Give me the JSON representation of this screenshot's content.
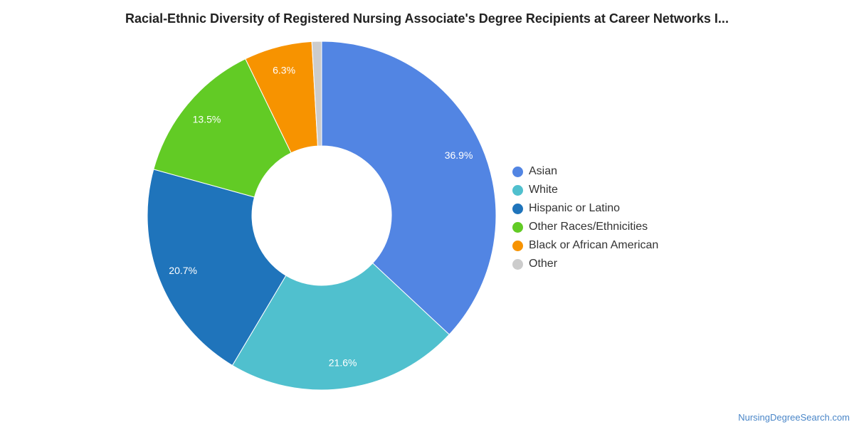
{
  "chart_data": {
    "type": "pie",
    "title": "Racial-Ethnic Diversity of Registered Nursing Associate's Degree Recipients at Career Networks I...",
    "donut": true,
    "legend_position": "right",
    "categories": [
      "Asian",
      "White",
      "Hispanic or Latino",
      "Other Races/Ethnicities",
      "Black or African American",
      "Other"
    ],
    "values": [
      36.9,
      21.6,
      20.7,
      13.5,
      6.3,
      0.9
    ],
    "data_labels": [
      "36.9%",
      "21.6%",
      "20.7%",
      "13.5%",
      "6.3%",
      ""
    ],
    "colors": [
      "#5285e3",
      "#50c0ce",
      "#1f74bb",
      "#62cb25",
      "#f79300",
      "#cccccc"
    ]
  },
  "footer": {
    "source": "NursingDegreeSearch.com"
  }
}
